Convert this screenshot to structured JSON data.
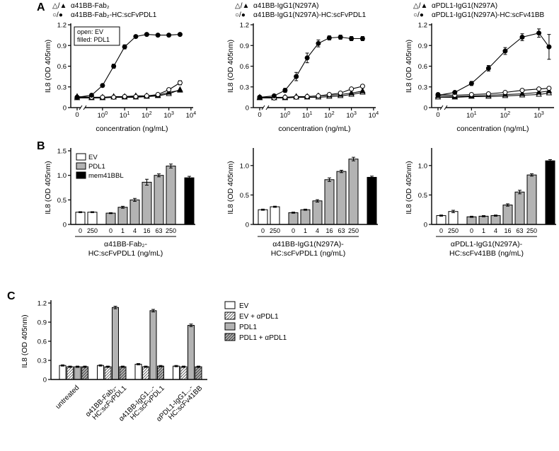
{
  "panels": {
    "a": {
      "label": "A"
    },
    "b": {
      "label": "B"
    },
    "c": {
      "label": "C"
    }
  },
  "chart_data": [
    {
      "id": "chart-a1",
      "type": "line",
      "panel": "A",
      "legend": [
        {
          "symbols": "△/▲",
          "label": "α41BB-Fab₂"
        },
        {
          "symbols": "○/●",
          "label": "α41BB-Fab₂-HC:scFvPDL1"
        }
      ],
      "annotation": [
        "open: EV",
        "filled: PDL1"
      ],
      "xlabel": "concentration (ng/mL)",
      "ylabel": "IL8 (OD 405nm)",
      "ylim": [
        0,
        1.2
      ],
      "yticks": [
        "0",
        "0.3",
        "0.6",
        "0.9",
        "1.2"
      ],
      "xtick_exponents": [
        0,
        1,
        2,
        3,
        4
      ],
      "log_exp_range": [
        -0.7,
        4.1
      ],
      "x": [
        0,
        0.32,
        1,
        3.2,
        10,
        32,
        100,
        320,
        1000,
        3200
      ],
      "series": [
        {
          "name": "α41BB-Fab₂ + EV",
          "marker": "triangle-open",
          "values": [
            0.14,
            0.14,
            0.14,
            0.15,
            0.15,
            0.15,
            0.16,
            0.17,
            0.2,
            0.26
          ]
        },
        {
          "name": "α41BB-Fab₂ + PDL1",
          "marker": "triangle-filled",
          "values": [
            0.16,
            0.15,
            0.15,
            0.16,
            0.16,
            0.17,
            0.17,
            0.18,
            0.22,
            0.25
          ]
        },
        {
          "name": "α41BB-Fab₂-HC:scFvPDL1 + EV",
          "marker": "circle-open",
          "values": [
            0.15,
            0.15,
            0.15,
            0.15,
            0.16,
            0.16,
            0.17,
            0.19,
            0.26,
            0.36
          ],
          "err": [
            0,
            0,
            0,
            0,
            0,
            0,
            0,
            0,
            0.02,
            0.03
          ]
        },
        {
          "name": "α41BB-Fab₂-HC:scFvPDL1 + PDL1",
          "marker": "circle-filled",
          "values": [
            0.15,
            0.18,
            0.32,
            0.6,
            0.88,
            1.03,
            1.06,
            1.05,
            1.05,
            1.06
          ],
          "err": [
            0.01,
            0.01,
            0.02,
            0.03,
            0.03,
            0.02,
            0.02,
            0.02,
            0.02,
            0.02
          ]
        }
      ]
    },
    {
      "id": "chart-a2",
      "type": "line",
      "panel": "A",
      "legend": [
        {
          "symbols": "△/▲",
          "label": "α41BB-IgG1(N297A)"
        },
        {
          "symbols": "○/●",
          "label": "α41BB-IgG1(N297A)-HC:scFvPDL1"
        }
      ],
      "xlabel": "concentration (ng/mL)",
      "ylabel": "IL8 (OD 405nm)",
      "ylim": [
        0,
        1.2
      ],
      "yticks": [
        "0",
        "0.3",
        "0.6",
        "0.9",
        "1.2"
      ],
      "xtick_exponents": [
        0,
        1,
        2,
        3,
        4
      ],
      "log_exp_range": [
        -0.7,
        4.1
      ],
      "x": [
        0,
        0.32,
        1,
        3.2,
        10,
        32,
        100,
        320,
        1000,
        3200
      ],
      "series": [
        {
          "name": "α41BB-IgG1(N297A) + EV",
          "marker": "triangle-open",
          "values": [
            0.14,
            0.14,
            0.14,
            0.15,
            0.15,
            0.15,
            0.16,
            0.17,
            0.19,
            0.22
          ]
        },
        {
          "name": "α41BB-IgG1(N297A) + PDL1",
          "marker": "triangle-filled",
          "values": [
            0.15,
            0.15,
            0.15,
            0.16,
            0.16,
            0.17,
            0.18,
            0.19,
            0.21,
            0.24
          ]
        },
        {
          "name": "α41BB-IgG1(N297A)-HC:scFvPDL1 + EV",
          "marker": "circle-open",
          "values": [
            0.15,
            0.14,
            0.15,
            0.15,
            0.16,
            0.17,
            0.19,
            0.21,
            0.27,
            0.31
          ],
          "err": [
            0,
            0,
            0,
            0,
            0,
            0,
            0,
            0,
            0.02,
            0.02
          ]
        },
        {
          "name": "α41BB-IgG1(N297A)-HC:scFvPDL1 + PDL1",
          "marker": "circle-filled",
          "values": [
            0.15,
            0.17,
            0.25,
            0.45,
            0.72,
            0.93,
            1.01,
            1.02,
            1.0,
            1.0
          ],
          "err": [
            0.01,
            0.01,
            0.03,
            0.06,
            0.07,
            0.05,
            0.03,
            0.03,
            0.03,
            0.03
          ]
        }
      ]
    },
    {
      "id": "chart-a3",
      "type": "line",
      "panel": "A",
      "legend": [
        {
          "symbols": "△/▲",
          "label": "αPDL1-IgG1(N297A)"
        },
        {
          "symbols": "○/●",
          "label": "αPDL1-IgG1(N297A)-HC:scFv41BB"
        }
      ],
      "xlabel": "concentration (ng/mL)",
      "ylabel": "IL8 (OD 405nm)",
      "ylim": [
        0,
        1.2
      ],
      "yticks": [
        "0",
        "0.3",
        "0.6",
        "0.9",
        "1.2"
      ],
      "xtick_exponents": [
        1,
        2,
        3
      ],
      "log_exp_range": [
        0.3,
        3.45
      ],
      "x": [
        0,
        3.2,
        10,
        32,
        100,
        320,
        1000,
        2000
      ],
      "series": [
        {
          "name": "αPDL1-IgG1(N297A) + EV",
          "marker": "triangle-open",
          "values": [
            0.15,
            0.15,
            0.16,
            0.16,
            0.17,
            0.18,
            0.19,
            0.21
          ]
        },
        {
          "name": "αPDL1-IgG1(N297A) + PDL1",
          "marker": "triangle-filled",
          "values": [
            0.17,
            0.16,
            0.17,
            0.18,
            0.19,
            0.2,
            0.22,
            0.24
          ]
        },
        {
          "name": "αPDL1-IgG1(N297A)-HC:scFv41BB + EV",
          "marker": "circle-open",
          "values": [
            0.19,
            0.18,
            0.19,
            0.2,
            0.22,
            0.25,
            0.27,
            0.28
          ],
          "err": [
            0.01,
            0,
            0,
            0,
            0.01,
            0.01,
            0.01,
            0.02
          ]
        },
        {
          "name": "αPDL1-IgG1(N297A)-HC:scFv41BB + PDL1",
          "marker": "circle-filled",
          "values": [
            0.18,
            0.22,
            0.35,
            0.57,
            0.82,
            1.02,
            1.08,
            0.88
          ],
          "err": [
            0.02,
            0.02,
            0.03,
            0.04,
            0.05,
            0.05,
            0.06,
            0.18
          ]
        }
      ]
    },
    {
      "id": "chart-b1",
      "type": "bar",
      "panel": "B",
      "show_legend": true,
      "legend": [
        {
          "fill": "white",
          "label": "EV"
        },
        {
          "fill": "gray",
          "label": "PDL1"
        },
        {
          "fill": "black",
          "label": "mem41BBL"
        }
      ],
      "ylabel": "IL8 (OD 405nm)",
      "ylim": [
        0,
        1.5
      ],
      "yticks": [
        "0",
        "0.5",
        "1.0",
        "1.5"
      ],
      "bars": [
        {
          "group": 0,
          "fill": "white",
          "tick": "0",
          "value": 0.25,
          "err": 0.01
        },
        {
          "group": 0,
          "fill": "white",
          "tick": "250",
          "value": 0.25,
          "err": 0.01
        },
        {
          "group": 1,
          "fill": "gray",
          "tick": "0",
          "value": 0.23,
          "err": 0.01
        },
        {
          "group": 1,
          "fill": "gray",
          "tick": "1",
          "value": 0.35,
          "err": 0.02
        },
        {
          "group": 1,
          "fill": "gray",
          "tick": "4",
          "value": 0.5,
          "err": 0.03
        },
        {
          "group": 1,
          "fill": "gray",
          "tick": "16",
          "value": 0.86,
          "err": 0.06
        },
        {
          "group": 1,
          "fill": "gray",
          "tick": "63",
          "value": 1.0,
          "err": 0.03
        },
        {
          "group": 1,
          "fill": "gray",
          "tick": "250",
          "value": 1.19,
          "err": 0.04
        },
        {
          "group": 2,
          "fill": "black",
          "tick": "",
          "value": 0.95,
          "err": 0.03
        }
      ],
      "xlabel_lines": [
        "α41BB-Fab₂-",
        "HC:scFvPDL1 (ng/mL)"
      ]
    },
    {
      "id": "chart-b2",
      "type": "bar",
      "panel": "B",
      "show_legend": false,
      "ylabel": "IL8 (OD 405nm)",
      "ylim": [
        0,
        1.25
      ],
      "yticks": [
        "0",
        "0.5",
        "1.0"
      ],
      "bars": [
        {
          "group": 0,
          "fill": "white",
          "tick": "0",
          "value": 0.25,
          "err": 0.01
        },
        {
          "group": 0,
          "fill": "white",
          "tick": "250",
          "value": 0.3,
          "err": 0.01
        },
        {
          "group": 1,
          "fill": "gray",
          "tick": "0",
          "value": 0.2,
          "err": 0.01
        },
        {
          "group": 1,
          "fill": "gray",
          "tick": "1",
          "value": 0.25,
          "err": 0.01
        },
        {
          "group": 1,
          "fill": "gray",
          "tick": "4",
          "value": 0.4,
          "err": 0.02
        },
        {
          "group": 1,
          "fill": "gray",
          "tick": "16",
          "value": 0.76,
          "err": 0.03
        },
        {
          "group": 1,
          "fill": "gray",
          "tick": "63",
          "value": 0.9,
          "err": 0.02
        },
        {
          "group": 1,
          "fill": "gray",
          "tick": "250",
          "value": 1.11,
          "err": 0.03
        },
        {
          "group": 2,
          "fill": "black",
          "tick": "",
          "value": 0.8,
          "err": 0.02
        }
      ],
      "xlabel_lines": [
        "α41BB-IgG1(N297A)-",
        "HC:scFvPDL1 (ng/mL)"
      ]
    },
    {
      "id": "chart-b3",
      "type": "bar",
      "panel": "B",
      "show_legend": false,
      "ylabel": "IL8 (OD 405nm)",
      "ylim": [
        0,
        1.25
      ],
      "yticks": [
        "0",
        "0.5",
        "1.0"
      ],
      "bars": [
        {
          "group": 0,
          "fill": "white",
          "tick": "0",
          "value": 0.15,
          "err": 0.01
        },
        {
          "group": 0,
          "fill": "white",
          "tick": "250",
          "value": 0.22,
          "err": 0.02
        },
        {
          "group": 1,
          "fill": "gray",
          "tick": "0",
          "value": 0.13,
          "err": 0.01
        },
        {
          "group": 1,
          "fill": "gray",
          "tick": "1",
          "value": 0.14,
          "err": 0.01
        },
        {
          "group": 1,
          "fill": "gray",
          "tick": "4",
          "value": 0.15,
          "err": 0.01
        },
        {
          "group": 1,
          "fill": "gray",
          "tick": "16",
          "value": 0.33,
          "err": 0.02
        },
        {
          "group": 1,
          "fill": "gray",
          "tick": "63",
          "value": 0.55,
          "err": 0.03
        },
        {
          "group": 1,
          "fill": "gray",
          "tick": "250",
          "value": 0.84,
          "err": 0.02
        },
        {
          "group": 2,
          "fill": "black",
          "tick": "",
          "value": 1.08,
          "err": 0.02
        }
      ],
      "xlabel_lines": [
        "αPDL1-IgG1(N297A)-",
        "HC:scFv41BB (ng/mL)"
      ]
    },
    {
      "id": "chart-c",
      "type": "grouped-bar",
      "panel": "C",
      "ylabel": "IL8 (OD 405nm)",
      "ylim": [
        0,
        1.2
      ],
      "yticks": [
        "0",
        "0.3",
        "0.6",
        "0.9",
        "1.2"
      ],
      "legend": [
        {
          "fill": "white",
          "label": "EV"
        },
        {
          "fill": "hatch-white",
          "label": "EV + αPDL1"
        },
        {
          "fill": "gray",
          "label": "PDL1"
        },
        {
          "fill": "hatch-gray",
          "label": "PDL1 + αPDL1"
        }
      ],
      "categories": [
        {
          "lines": [
            "untreated"
          ]
        },
        {
          "lines": [
            "α41BB-Fab₂-",
            "HC:scFvPDL1"
          ]
        },
        {
          "lines": [
            "α41BB-IgG1...-",
            "HC:scFvPDL1"
          ]
        },
        {
          "lines": [
            "αPDL1-IgG1...-",
            "HC:scFv41BB"
          ]
        }
      ],
      "series": [
        {
          "name": "EV",
          "fill": "white",
          "values": [
            0.22,
            0.22,
            0.24,
            0.21
          ],
          "err": [
            0.01,
            0.01,
            0.01,
            0.01
          ]
        },
        {
          "name": "EV + αPDL1",
          "fill": "hatch-white",
          "values": [
            0.2,
            0.2,
            0.2,
            0.2
          ],
          "err": [
            0.01,
            0.01,
            0.01,
            0.01
          ]
        },
        {
          "name": "PDL1",
          "fill": "gray",
          "values": [
            0.2,
            1.13,
            1.08,
            0.85
          ],
          "err": [
            0.01,
            0.02,
            0.02,
            0.02
          ]
        },
        {
          "name": "PDL1 + αPDL1",
          "fill": "hatch-gray",
          "values": [
            0.2,
            0.2,
            0.21,
            0.2
          ],
          "err": [
            0.01,
            0.01,
            0.01,
            0.01
          ]
        }
      ]
    }
  ]
}
